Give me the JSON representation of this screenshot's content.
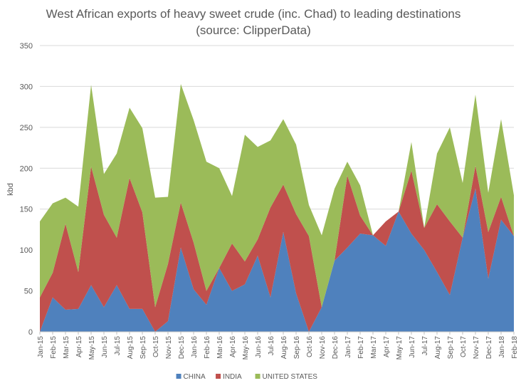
{
  "chart_data": {
    "type": "area",
    "stacked": true,
    "title": "West African exports of heavy sweet crude (inc. Chad) to leading destinations",
    "subtitle": "(source: ClipperData)",
    "ylabel": "kbd",
    "ylim": [
      0,
      350
    ],
    "yticks": [
      0,
      50,
      100,
      150,
      200,
      250,
      300,
      350
    ],
    "grid": true,
    "legend_position": "bottom",
    "categories": [
      "Jan-15",
      "Feb-15",
      "Mar-15",
      "Apr-15",
      "May-15",
      "Jun-15",
      "Jul-15",
      "Aug-15",
      "Sep-15",
      "Oct-15",
      "Nov-15",
      "Dec-15",
      "Jan-16",
      "Feb-16",
      "Mar-16",
      "Apr-16",
      "May-16",
      "Jun-16",
      "Jul-16",
      "Aug-16",
      "Sep-16",
      "Oct-16",
      "Nov-16",
      "Dec-16",
      "Jan-17",
      "Feb-17",
      "Mar-17",
      "Apr-17",
      "May-17",
      "Jun-17",
      "Jul-17",
      "Aug-17",
      "Sep-17",
      "Oct-17",
      "Nov-17",
      "Dec-17",
      "Jan-18",
      "Feb-18"
    ],
    "series": [
      {
        "name": "CHINA",
        "color": "#4F81BD",
        "values": [
          0,
          42,
          27,
          28,
          57,
          30,
          57,
          28,
          28,
          0,
          13,
          103,
          52,
          33,
          78,
          50,
          58,
          93,
          42,
          122,
          47,
          0,
          30,
          87,
          103,
          120,
          118,
          105,
          147,
          120,
          100,
          73,
          45,
          115,
          175,
          65,
          137,
          117
        ]
      },
      {
        "name": "INDIA",
        "color": "#C0504D",
        "values": [
          42,
          30,
          105,
          45,
          145,
          113,
          58,
          160,
          118,
          30,
          70,
          55,
          57,
          17,
          0,
          58,
          28,
          20,
          110,
          58,
          97,
          117,
          0,
          0,
          88,
          22,
          0,
          30,
          0,
          77,
          27,
          83,
          90,
          0,
          28,
          57,
          28,
          0
        ]
      },
      {
        "name": "UNITED STATES",
        "color": "#9BBB59",
        "values": [
          93,
          85,
          32,
          80,
          100,
          50,
          103,
          86,
          103,
          134,
          82,
          145,
          150,
          158,
          122,
          58,
          155,
          113,
          82,
          80,
          85,
          38,
          88,
          88,
          17,
          37,
          0,
          0,
          0,
          35,
          0,
          62,
          115,
          67,
          87,
          48,
          95,
          50
        ]
      }
    ]
  }
}
